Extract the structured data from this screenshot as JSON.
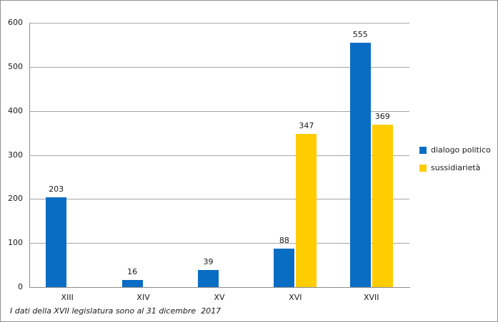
{
  "chart_data": {
    "type": "bar",
    "categories": [
      "XIII",
      "XIV",
      "XV",
      "XVI",
      "XVII"
    ],
    "series": [
      {
        "name": "dialogo politico",
        "color": "#0a6dc4",
        "values": [
          203,
          16,
          39,
          88,
          555
        ]
      },
      {
        "name": "sussidiarietà",
        "color": "#ffcc00",
        "values": [
          null,
          null,
          null,
          347,
          369
        ]
      }
    ],
    "yticks": [
      0,
      100,
      200,
      300,
      400,
      500,
      600
    ],
    "ylim": [
      0,
      600
    ],
    "grid": true,
    "legend_position": "right",
    "data_labels": true,
    "footnote": "I dati della XVII legislatura sono al 31 dicembre  2017"
  }
}
